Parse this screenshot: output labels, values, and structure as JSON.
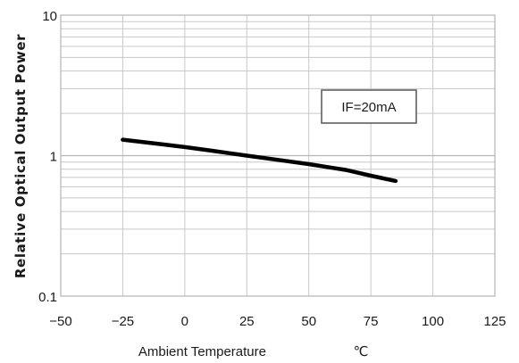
{
  "chart_data": {
    "type": "line",
    "title": "",
    "xlabel": "Ambient Temperature",
    "xlabel_unit": "℃",
    "ylabel": "Relative Optical Output Power",
    "xlim": [
      -50,
      125
    ],
    "ylim": [
      0.1,
      10
    ],
    "y_scale": "log",
    "grid": true,
    "x_ticks": [
      -50,
      -25,
      0,
      25,
      50,
      75,
      100,
      125
    ],
    "x_tick_labels": [
      "−50",
      "−25",
      "0",
      "25",
      "50",
      "75",
      "100",
      "125"
    ],
    "y_ticks": [
      0.1,
      1,
      10
    ],
    "y_tick_labels": [
      "0.1",
      "1",
      "10"
    ],
    "annotation": "IF=20mA",
    "series": [
      {
        "x": [
          -25,
          -10,
          0,
          10,
          25,
          40,
          50,
          65,
          75,
          85
        ],
        "y": [
          1.3,
          1.21,
          1.15,
          1.09,
          1.0,
          0.92,
          0.87,
          0.79,
          0.72,
          0.66
        ]
      }
    ],
    "colors": {
      "line": "#000000",
      "grid": "#c8c8c8",
      "frame": "#b4b4b4"
    }
  }
}
